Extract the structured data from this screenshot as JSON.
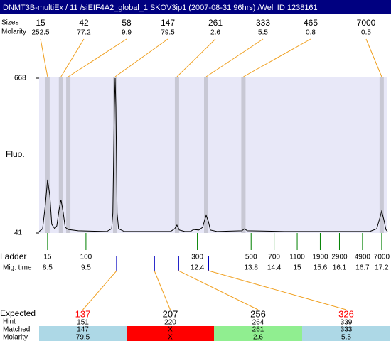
{
  "chart_data": {
    "type": "electropherogram",
    "title": "DNMT3B-multiEx / 11 /siEIF4A2_global_1|SKOV3ip1 (2007-08-31 96hrs) /Well ID 1238161",
    "header_labels": [
      "Sizes",
      "Molarity"
    ],
    "peaks": {
      "sizes": [
        15,
        42,
        58,
        147,
        261,
        333,
        465,
        7000
      ],
      "molarity": [
        252.5,
        77.2,
        9.9,
        79.5,
        2.6,
        5.5,
        0.8,
        0.5
      ],
      "times": [
        8.5,
        8.85,
        9.04,
        10.26,
        11.87,
        12.63,
        13.6,
        17.2
      ]
    },
    "y_label": "Fluo.",
    "ylim": [
      41,
      668
    ],
    "yticks": [
      668,
      41
    ],
    "xlim": [
      8.28,
      17.35
    ],
    "trace": {
      "x": [
        8.28,
        8.37,
        8.44,
        8.5,
        8.56,
        8.61,
        8.69,
        8.74,
        8.8,
        8.85,
        8.91,
        8.96,
        9.04,
        9.3,
        10.04,
        10.17,
        10.2,
        10.24,
        10.26,
        10.28,
        10.31,
        10.35,
        10.5,
        11.7,
        11.81,
        11.87,
        11.93,
        12.07,
        12.22,
        12.3,
        12.44,
        12.54,
        12.59,
        12.63,
        12.69,
        12.74,
        12.91,
        13.56,
        13.63,
        13.7,
        14.67,
        16.89,
        17.07,
        17.15,
        17.2,
        17.26,
        17.31,
        17.35
      ],
      "values": [
        47,
        58,
        150,
        257,
        193,
        76,
        58,
        70,
        136,
        176,
        122,
        64,
        55,
        50,
        47,
        58,
        122,
        553,
        668,
        553,
        122,
        58,
        47,
        47,
        58,
        73,
        53,
        47,
        47,
        55,
        53,
        64,
        93,
        113,
        87,
        53,
        47,
        50,
        58,
        50,
        47,
        47,
        58,
        101,
        130,
        93,
        55,
        47
      ],
      "color": "#000000"
    },
    "ladder_label": "Ladder",
    "time_label": "Mig. time",
    "ladder": {
      "sizes": [
        15,
        100,
        300,
        500,
        700,
        1100,
        1900,
        2900,
        4900,
        7000
      ],
      "times": [
        8.5,
        9.5,
        12.4,
        13.8,
        14.4,
        15,
        15.6,
        16.1,
        16.7,
        17.2
      ]
    },
    "expected_times": [
      10.3,
      11.28,
      11.91,
      12.69
    ],
    "table": {
      "row_labels": [
        "Expected",
        "Hint",
        "Matched",
        "Molarity"
      ],
      "expected": [
        137,
        207,
        256,
        326
      ],
      "expected_colors": [
        "#ff0000",
        "#000000",
        "#000000",
        "#ff0000"
      ],
      "hint": [
        151,
        220,
        264,
        339
      ],
      "matched": [
        "147",
        "X",
        "261",
        "333"
      ],
      "molarity": [
        "79.5",
        "X",
        "2.6",
        "5.5"
      ],
      "cell_colors": [
        "#add8e6",
        "#ff0000",
        "#90ee90",
        "#add8e6"
      ]
    }
  }
}
